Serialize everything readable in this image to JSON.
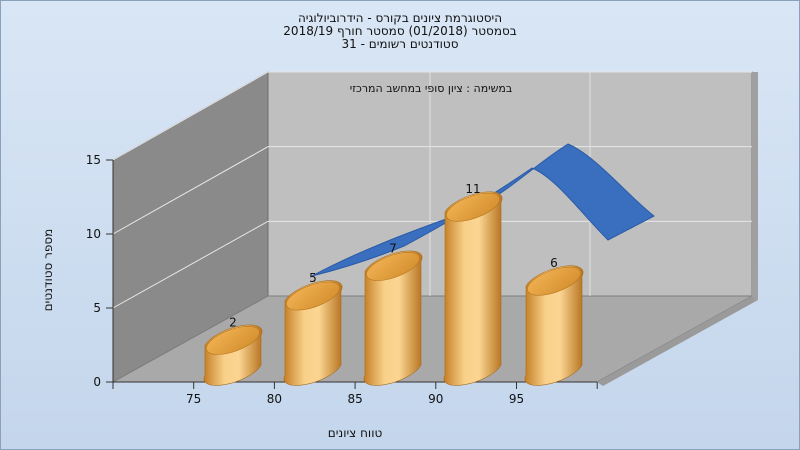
{
  "chart_data": {
    "type": "bar",
    "title_lines": [
      "היסטוגרמת ציונים בקורס - הידרוביולוגיה",
      "בסמסטר  (01/2018)  סמסטר חורף 2018/19",
      "סטודנטים רשומים - 31"
    ],
    "subtitle": "במשימה : ציון סופי במחשב המרכזי",
    "xlabel": "טווח ציונים",
    "ylabel": "מספר סטודנטים",
    "x_ticks": [
      "75",
      "80",
      "85",
      "90",
      "95"
    ],
    "y_ticks": [
      0,
      5,
      10,
      15
    ],
    "ylim": [
      0,
      15
    ],
    "bars": [
      {
        "label": "2",
        "value": 2
      },
      {
        "label": "5",
        "value": 5
      },
      {
        "label": "7",
        "value": 7
      },
      {
        "label": "11",
        "value": 11
      },
      {
        "label": "6",
        "value": 6
      }
    ],
    "curve": {
      "type": "ribbon",
      "color": "#3a6fbf"
    },
    "bar_color": "#e9a94a"
  }
}
